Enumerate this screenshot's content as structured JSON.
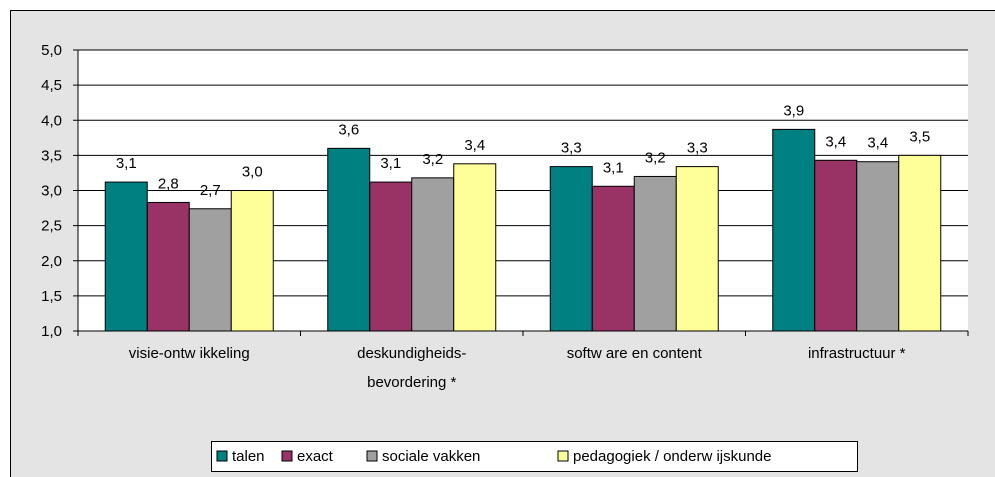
{
  "chart_data": {
    "type": "bar",
    "categories": [
      "visie-ontw ikkeling",
      "deskundigheids-\nbevordering *",
      "softw are en content",
      "infrastructuur *"
    ],
    "series": [
      {
        "name": "talen",
        "color": "#008080",
        "values": [
          3.12,
          3.6,
          3.34,
          3.87
        ],
        "value_labels": [
          "3,1",
          "3,6",
          "3,3",
          "3,9"
        ]
      },
      {
        "name": "exact",
        "color": "#993366",
        "values": [
          2.83,
          3.12,
          3.06,
          3.43
        ],
        "value_labels": [
          "2,8",
          "3,1",
          "3,1",
          "3,4"
        ]
      },
      {
        "name": "sociale vakken",
        "color": "#a0a0a0",
        "values": [
          2.74,
          3.18,
          3.2,
          3.41
        ],
        "value_labels": [
          "2,7",
          "3,2",
          "3,2",
          "3,4"
        ]
      },
      {
        "name": "pedagogiek / onderw ijskunde",
        "color": "#ffff99",
        "values": [
          3.0,
          3.38,
          3.34,
          3.5
        ],
        "value_labels": [
          "3,0",
          "3,4",
          "3,3",
          "3,5"
        ]
      }
    ],
    "ylim": [
      1,
      5
    ],
    "yticks": [
      {
        "value": 1,
        "label": "1,0"
      },
      {
        "value": 1.5,
        "label": "1,5"
      },
      {
        "value": 2,
        "label": "2,0"
      },
      {
        "value": 2.5,
        "label": "2,5"
      },
      {
        "value": 3,
        "label": "3,0"
      },
      {
        "value": 3.5,
        "label": "3,5"
      },
      {
        "value": 4,
        "label": "4,0"
      },
      {
        "value": 4.5,
        "label": "4,5"
      },
      {
        "value": 5,
        "label": "5,0"
      }
    ],
    "grid": true,
    "legend": "bottom"
  }
}
